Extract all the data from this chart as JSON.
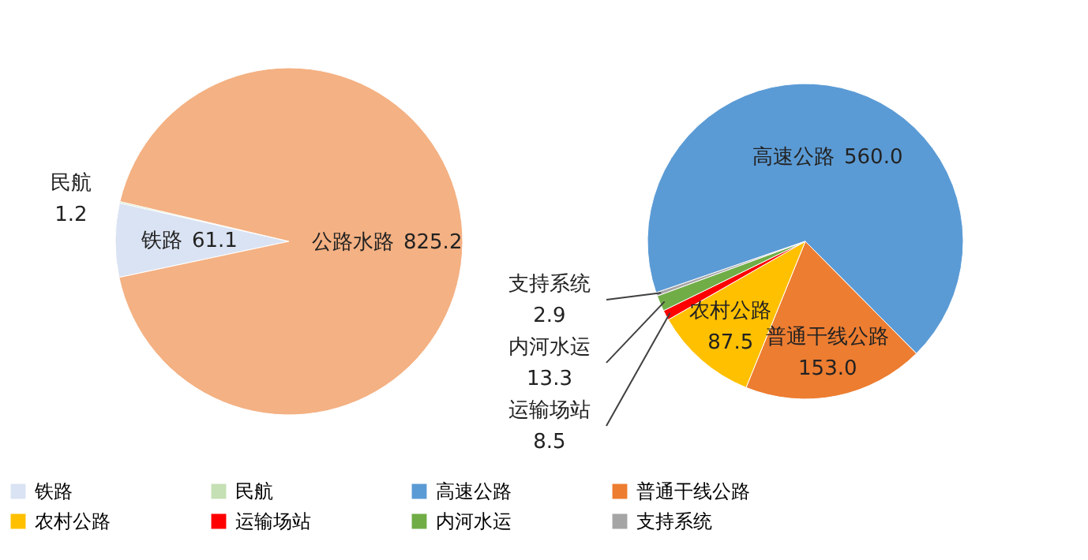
{
  "chart_data": [
    {
      "type": "pie",
      "categories": [
        "铁路",
        "民航",
        "公路水路"
      ],
      "values": [
        61.1,
        1.2,
        825.2
      ],
      "colors": [
        "#dae3f3",
        "#c5e0b4",
        "#f4b183"
      ],
      "data_labels": true,
      "legend": "bottom"
    },
    {
      "type": "pie",
      "categories": [
        "高速公路",
        "普通干线公路",
        "农村公路",
        "运输场站",
        "内河水运",
        "支持系统"
      ],
      "values": [
        560.0,
        153.0,
        87.5,
        8.5,
        13.3,
        2.9
      ],
      "colors": [
        "#5b9bd5",
        "#ed7d31",
        "#ffc000",
        "#ff0000",
        "#70ad47",
        "#a5a5a5"
      ],
      "value_labels": [
        "560.0",
        "153.0",
        "87.5",
        "8.5",
        "13.3",
        "2.9"
      ],
      "legend": "bottom"
    }
  ]
}
